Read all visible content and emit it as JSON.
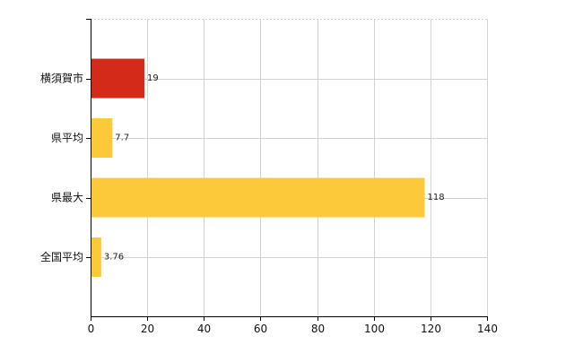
{
  "chart_data": {
    "type": "bar",
    "orientation": "horizontal",
    "categories": [
      "横須賀市",
      "県平均",
      "県最大",
      "全国平均"
    ],
    "values": [
      19,
      7.7,
      118,
      3.76
    ],
    "value_labels": [
      "19",
      "7.7",
      "118",
      "3.76"
    ],
    "bar_colors": [
      "#d42a1a",
      "#fcc93a",
      "#fcc93a",
      "#fcc93a"
    ],
    "title": "",
    "xlabel": "",
    "ylabel": "",
    "xlim": [
      0,
      140
    ],
    "xticks": [
      0,
      20,
      40,
      60,
      80,
      100,
      120,
      140
    ],
    "grid": true,
    "grid_color": "#d3d3d3",
    "axis_color": "#000000",
    "legend": "none"
  }
}
